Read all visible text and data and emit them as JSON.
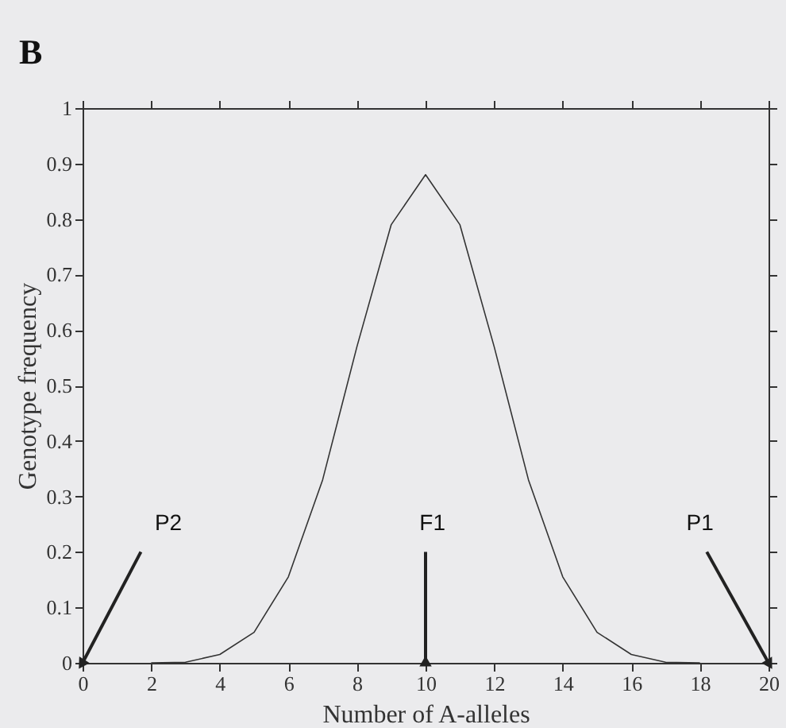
{
  "chart_data": {
    "type": "line",
    "title": "B",
    "xlabel": "Number of A-alleles",
    "ylabel": "Genotype frequency",
    "x": [
      2,
      3,
      4,
      5,
      6,
      7,
      8,
      9,
      10,
      11,
      12,
      13,
      14,
      15,
      16,
      17,
      18
    ],
    "series": [
      {
        "color": "#333333",
        "values": [
          0,
          0.001,
          0.015,
          0.055,
          0.155,
          0.33,
          0.57,
          0.79,
          0.88,
          0.79,
          0.57,
          0.33,
          0.155,
          0.055,
          0.015,
          0.001,
          0
        ]
      }
    ],
    "xlim": [
      0,
      20
    ],
    "xticks": [
      0,
      2,
      4,
      6,
      8,
      10,
      12,
      14,
      16,
      18,
      20
    ],
    "ylim": [
      0,
      1
    ],
    "yticks": [
      0,
      0.1,
      0.2,
      0.3,
      0.4,
      0.5,
      0.6,
      0.7,
      0.8,
      0.9,
      1
    ],
    "annotations": [
      {
        "text": "P2",
        "x": 0,
        "y": 0
      },
      {
        "text": "F1",
        "x": 10,
        "y": 0
      },
      {
        "text": "P1",
        "x": 20,
        "y": 0
      }
    ],
    "grid": false,
    "marker": "none",
    "line_style": "solid"
  }
}
